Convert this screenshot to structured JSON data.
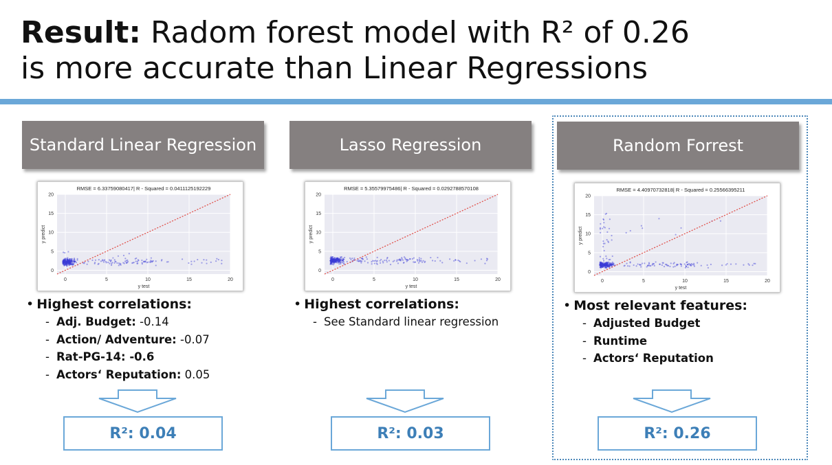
{
  "title": {
    "bold": "Result:",
    "line1_rest": " Radom forest model with R² of 0.26",
    "line2": "is more accurate than Linear Regressions"
  },
  "colors": {
    "rule": "#6aa7d8",
    "header_bg": "#858080",
    "accent_text": "#3d7fb7",
    "points": "#3b3bd6",
    "ideal_line": "#e0504a"
  },
  "columns": [
    {
      "header": "Standard Linear Regression",
      "plot_title": "RMSE = 6.33759080417| R - Squared = 0.0411125192229",
      "bullet_head": "Highest correlations:",
      "items": [
        {
          "label": "Adj. Budget:",
          "value": " -0.14"
        },
        {
          "label": "Action/ Adventure:",
          "value": " -0.07"
        },
        {
          "label": "Rat-PG-14: -0.6",
          "value": ""
        },
        {
          "label": "Actors‘ Reputation:",
          "value": " 0.05"
        }
      ],
      "result": "R²: 0.04"
    },
    {
      "header": "Lasso Regression",
      "plot_title": "RMSE = 5.35579975486| R - Squared = 0.0292788570108",
      "bullet_head": "Highest correlations:",
      "items": [
        {
          "label": "",
          "value": "See Standard linear regression"
        }
      ],
      "result": "R²: 0.03"
    },
    {
      "header": "Random Forrest",
      "plot_title": "RMSE = 4.40970732818| R - Squared = 0.25566395211",
      "bullet_head": "Most relevant features:",
      "items": [
        {
          "label": "Adjusted Budget",
          "value": ""
        },
        {
          "label": "Runtime",
          "value": ""
        },
        {
          "label": "Actors‘ Reputation",
          "value": ""
        }
      ],
      "result": "R²: 0.26"
    }
  ],
  "chart_data": [
    {
      "type": "scatter",
      "title": "RMSE = 6.33759080417| R - Squared = 0.0411125192229",
      "xlabel": "y test",
      "ylabel": "y predict",
      "xlim": [
        -1,
        20
      ],
      "ylim": [
        -1,
        20
      ],
      "x_ticks": [
        "0",
        "5",
        "10",
        "15",
        "20"
      ],
      "y_ticks": [
        "0",
        "5",
        "10",
        "15",
        "20"
      ],
      "grid": true,
      "reference_line": "y = x"
    },
    {
      "type": "scatter",
      "title": "RMSE = 5.35579975486| R - Squared = 0.0292788570108",
      "xlabel": "y test",
      "ylabel": "y predict",
      "xlim": [
        -1,
        20
      ],
      "ylim": [
        -1,
        20
      ],
      "x_ticks": [
        "0",
        "5",
        "10",
        "15",
        "20"
      ],
      "y_ticks": [
        "0",
        "5",
        "10",
        "15",
        "20"
      ],
      "grid": true,
      "reference_line": "y = x"
    },
    {
      "type": "scatter",
      "title": "RMSE = 4.40970732818| R - Squared = 0.25566395211",
      "xlabel": "y test",
      "ylabel": "y predict",
      "xlim": [
        -1,
        20
      ],
      "ylim": [
        -1,
        20
      ],
      "x_ticks": [
        "0",
        "5",
        "10",
        "15",
        "20"
      ],
      "y_ticks": [
        "0",
        "5",
        "10",
        "15",
        "20"
      ],
      "grid": true,
      "reference_line": "y = x"
    }
  ]
}
